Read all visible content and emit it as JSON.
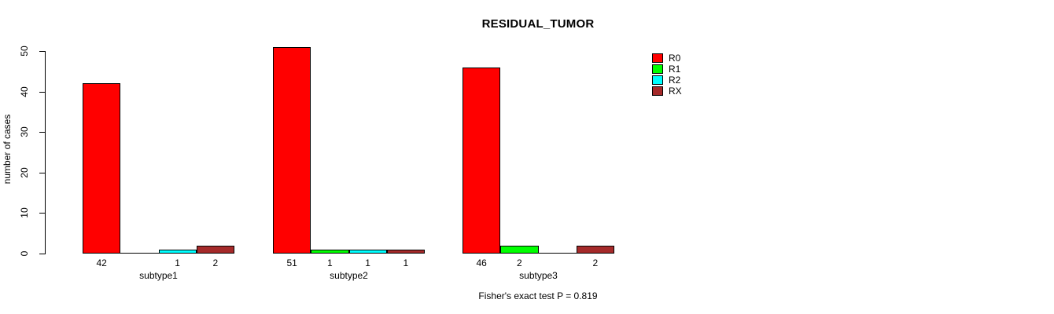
{
  "chart_data": {
    "type": "bar",
    "title": "RESIDUAL_TUMOR",
    "xlabel": "",
    "ylabel": "number of cases",
    "ylim": [
      0,
      50
    ],
    "yticks": [
      0,
      10,
      20,
      30,
      40,
      50
    ],
    "grid": false,
    "legend_position": "right",
    "bar_value_labels": "shown under axis for each non-zero bar",
    "categories": [
      "subtype1",
      "subtype2",
      "subtype3"
    ],
    "series": [
      {
        "name": "R0",
        "color": "#FF0000",
        "values": [
          42,
          51,
          46
        ]
      },
      {
        "name": "R1",
        "color": "#00FF00",
        "values": [
          0,
          1,
          2
        ]
      },
      {
        "name": "R2",
        "color": "#00FFFF",
        "values": [
          1,
          1,
          0
        ]
      },
      {
        "name": "RX",
        "color": "#A52A2A",
        "values": [
          2,
          1,
          2
        ]
      }
    ],
    "annotation": "Fisher's exact test P = 0.819"
  },
  "colors": {
    "background": "#FFFFFF",
    "axis": "#000000",
    "text": "#000000"
  }
}
